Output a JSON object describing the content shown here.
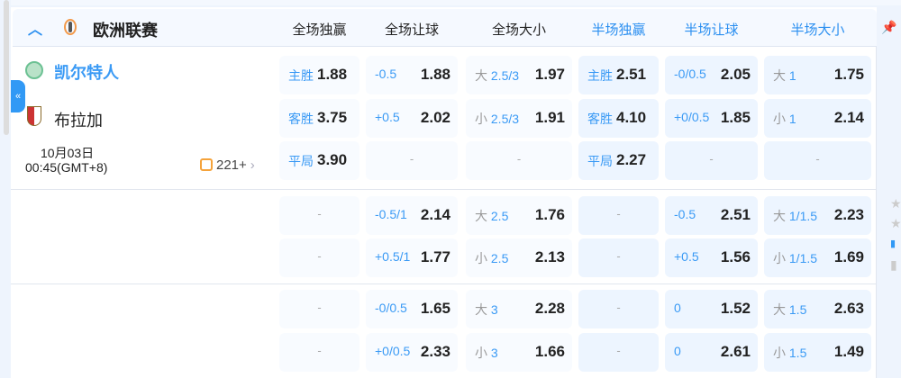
{
  "league": {
    "name": "欧洲联赛"
  },
  "columns": [
    {
      "label": "全场独赢",
      "half": false
    },
    {
      "label": "全场让球",
      "half": false
    },
    {
      "label": "全场大小",
      "half": false
    },
    {
      "label": "半场独赢",
      "half": true
    },
    {
      "label": "半场让球",
      "half": true
    },
    {
      "label": "半场大小",
      "half": true
    }
  ],
  "match": {
    "home": "凯尔特人",
    "away": "布拉加",
    "date": "10月03日",
    "time": "00:45(GMT+8)",
    "markets_count": "221+"
  },
  "colors": {
    "accent": "#2b8ff0",
    "home_team": "#3a9af5",
    "odds": "#222222"
  },
  "blocks": [
    [
      [
        {
          "label": "主胜",
          "value": "1.88"
        },
        {
          "line": "-0.5",
          "value": "1.88"
        },
        {
          "ou": "大",
          "line": "2.5/3",
          "value": "1.97"
        },
        {
          "label": "主胜",
          "value": "2.51"
        },
        {
          "line": "-0/0.5",
          "value": "2.05"
        },
        {
          "ou": "大",
          "line": "1",
          "value": "1.75"
        }
      ],
      [
        {
          "label": "客胜",
          "value": "3.75"
        },
        {
          "line": "+0.5",
          "value": "2.02"
        },
        {
          "ou": "小",
          "line": "2.5/3",
          "value": "1.91"
        },
        {
          "label": "客胜",
          "value": "4.10"
        },
        {
          "line": "+0/0.5",
          "value": "1.85"
        },
        {
          "ou": "小",
          "line": "1",
          "value": "2.14"
        }
      ],
      [
        {
          "label": "平局",
          "value": "3.90"
        },
        {
          "dash": "-"
        },
        {
          "dash": "-"
        },
        {
          "label": "平局",
          "value": "2.27"
        },
        {
          "dash": "-"
        },
        {
          "dash": "-"
        }
      ]
    ],
    [
      [
        {
          "dash": "-"
        },
        {
          "line": "-0.5/1",
          "value": "2.14"
        },
        {
          "ou": "大",
          "line": "2.5",
          "value": "1.76"
        },
        {
          "dash": "-"
        },
        {
          "line": "-0.5",
          "value": "2.51"
        },
        {
          "ou": "大",
          "line": "1/1.5",
          "value": "2.23"
        }
      ],
      [
        {
          "dash": "-"
        },
        {
          "line": "+0.5/1",
          "value": "1.77"
        },
        {
          "ou": "小",
          "line": "2.5",
          "value": "2.13"
        },
        {
          "dash": "-"
        },
        {
          "line": "+0.5",
          "value": "1.56"
        },
        {
          "ou": "小",
          "line": "1/1.5",
          "value": "1.69"
        }
      ]
    ],
    [
      [
        {
          "dash": "-"
        },
        {
          "line": "-0/0.5",
          "value": "1.65"
        },
        {
          "ou": "大",
          "line": "3",
          "value": "2.28"
        },
        {
          "dash": "-"
        },
        {
          "line": "0",
          "value": "1.52"
        },
        {
          "ou": "大",
          "line": "1.5",
          "value": "2.63"
        }
      ],
      [
        {
          "dash": "-"
        },
        {
          "line": "+0/0.5",
          "value": "2.33"
        },
        {
          "ou": "小",
          "line": "3",
          "value": "1.66"
        },
        {
          "dash": "-"
        },
        {
          "line": "0",
          "value": "2.61"
        },
        {
          "ou": "小",
          "line": "1.5",
          "value": "1.49"
        }
      ]
    ]
  ]
}
